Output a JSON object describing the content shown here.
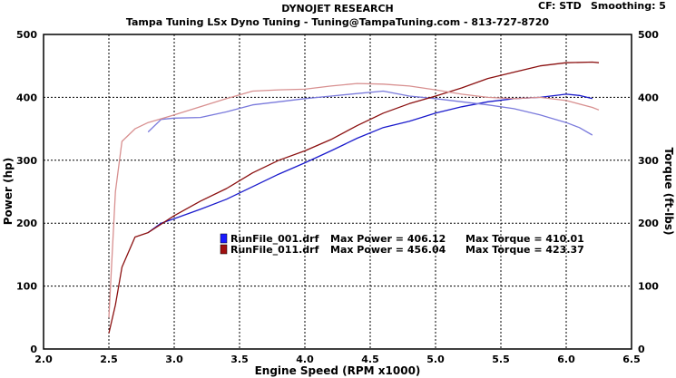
{
  "header": {
    "title": "DYNOJET RESEARCH",
    "subtitle": "Tampa Tuning LSx Dyno Tuning - Tuning@TampaTuning.com - 813-727-8720",
    "cf_label": "CF: STD",
    "smoothing_label": "Smoothing: 5"
  },
  "chart_data": {
    "type": "line",
    "title": "DYNOJET RESEARCH",
    "subtitle": "Tampa Tuning LSx Dyno Tuning - Tuning@TampaTuning.com - 813-727-8720",
    "xlabel": "Engine Speed (RPM x1000)",
    "ylabel_left": "Power (hp)",
    "ylabel_right": "Torque (ft-lbs)",
    "xlim": [
      2.0,
      6.5
    ],
    "ylim_left": [
      0,
      500
    ],
    "ylim_right": [
      0,
      500
    ],
    "x_ticks": [
      "2.0",
      "2.5",
      "3.0",
      "3.5",
      "4.0",
      "4.5",
      "5.0",
      "5.5",
      "6.0",
      "6.5"
    ],
    "y_ticks_left": [
      "0",
      "100",
      "200",
      "300",
      "400",
      "500"
    ],
    "y_ticks_right": [
      "0",
      "100",
      "200",
      "300",
      "400",
      "500"
    ],
    "grid": true,
    "legend": [
      {
        "file": "RunFile_001.drf",
        "max_power_label": "Max Power = 406.12",
        "max_torque_label": "Max Torque = 410.01",
        "color": "#1a1aff"
      },
      {
        "file": "RunFile_011.drf",
        "max_power_label": "Max Power = 456.04",
        "max_torque_label": "Max Torque = 423.37",
        "color": "#a01010"
      }
    ],
    "series": [
      {
        "file": "RunFile_001.drf",
        "kind": "power",
        "color": "#1a1acc",
        "x": [
          2.8,
          2.9,
          3.0,
          3.2,
          3.4,
          3.6,
          3.8,
          4.0,
          4.2,
          4.4,
          4.6,
          4.8,
          5.0,
          5.2,
          5.4,
          5.6,
          5.8,
          6.0,
          6.1,
          6.2
        ],
        "y": [
          185,
          200,
          207,
          222,
          238,
          258,
          278,
          296,
          315,
          335,
          352,
          362,
          375,
          385,
          393,
          398,
          400,
          405,
          403,
          398
        ]
      },
      {
        "file": "RunFile_001.drf",
        "kind": "torque",
        "color": "#7a7adc",
        "x": [
          2.8,
          2.9,
          3.0,
          3.2,
          3.4,
          3.6,
          3.8,
          4.0,
          4.2,
          4.4,
          4.6,
          4.8,
          5.0,
          5.2,
          5.4,
          5.6,
          5.8,
          6.0,
          6.1,
          6.2
        ],
        "y": [
          345,
          365,
          367,
          368,
          377,
          388,
          393,
          398,
          402,
          406,
          410,
          402,
          398,
          393,
          388,
          382,
          372,
          360,
          352,
          340
        ]
      },
      {
        "file": "RunFile_011.drf",
        "kind": "power",
        "color": "#8b1010",
        "x": [
          2.5,
          2.55,
          2.6,
          2.7,
          2.8,
          3.0,
          3.2,
          3.4,
          3.6,
          3.8,
          4.0,
          4.2,
          4.4,
          4.6,
          4.8,
          5.0,
          5.2,
          5.4,
          5.6,
          5.8,
          6.0,
          6.2,
          6.25
        ],
        "y": [
          25,
          70,
          130,
          178,
          185,
          212,
          235,
          255,
          280,
          300,
          315,
          333,
          355,
          375,
          390,
          402,
          415,
          430,
          440,
          450,
          455,
          456,
          455
        ]
      },
      {
        "file": "RunFile_011.drf",
        "kind": "torque",
        "color": "#d89090",
        "x": [
          2.5,
          2.55,
          2.6,
          2.7,
          2.8,
          3.0,
          3.2,
          3.4,
          3.6,
          3.8,
          4.0,
          4.2,
          4.4,
          4.6,
          4.8,
          5.0,
          5.2,
          5.4,
          5.6,
          5.8,
          6.0,
          6.2,
          6.25
        ],
        "y": [
          50,
          250,
          330,
          350,
          360,
          372,
          385,
          398,
          410,
          412,
          413,
          418,
          422,
          421,
          418,
          412,
          405,
          400,
          398,
          400,
          395,
          384,
          380
        ]
      }
    ]
  }
}
